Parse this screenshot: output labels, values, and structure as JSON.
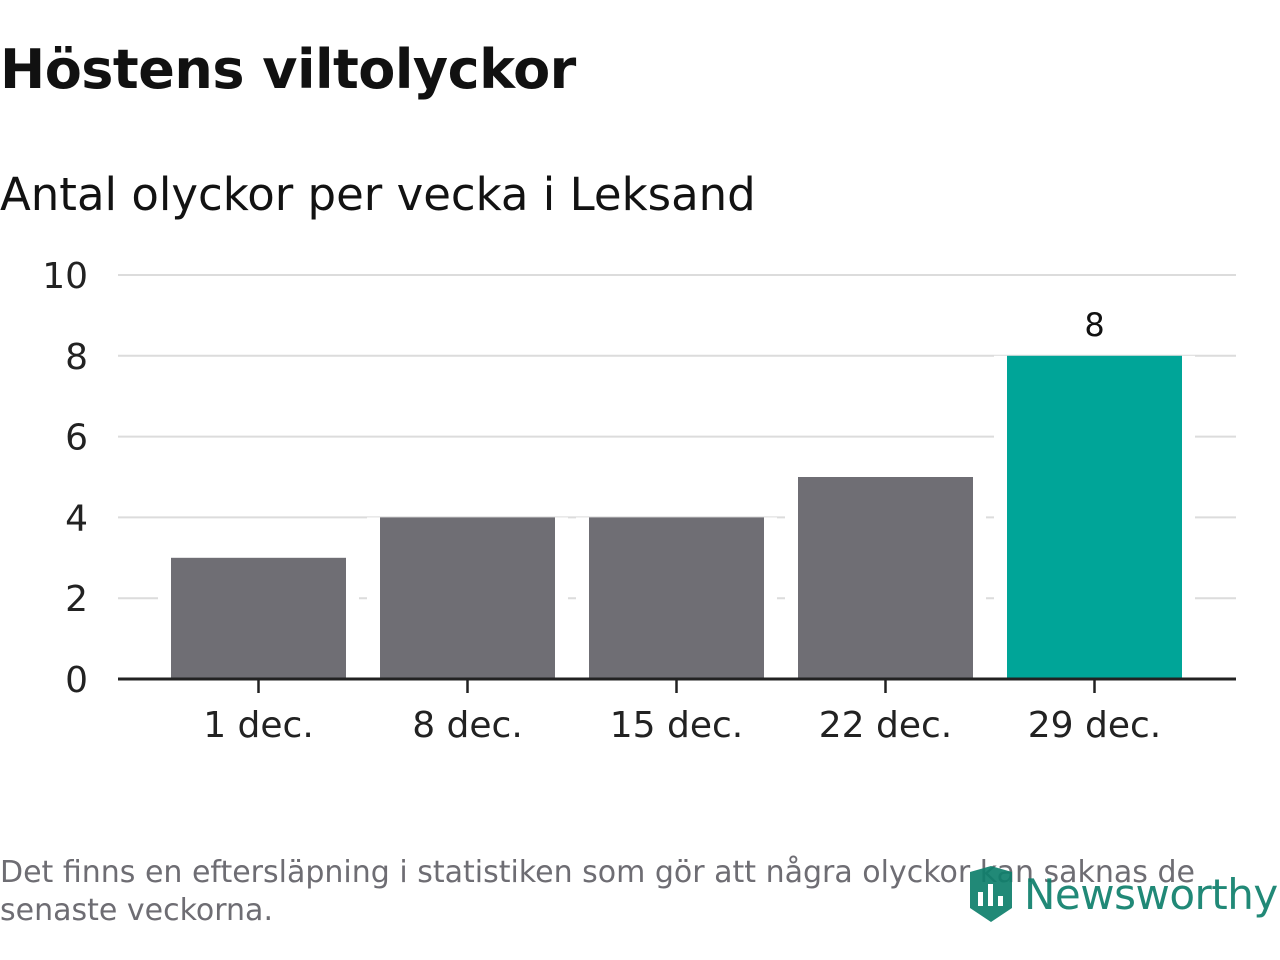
{
  "chart_data": {
    "type": "bar",
    "title": "Höstens viltolyckor",
    "subtitle": "Antal olyckor per vecka i Leksand",
    "categories": [
      "1 dec.",
      "8 dec.",
      "15 dec.",
      "22 dec.",
      "29 dec."
    ],
    "values": [
      3,
      4,
      4,
      5,
      8
    ],
    "highlight_index": 4,
    "data_labels": [
      null,
      null,
      null,
      null,
      "8"
    ],
    "ylim": [
      0,
      10
    ],
    "yticks": [
      0,
      2,
      4,
      6,
      8,
      10
    ],
    "xlabel": "",
    "ylabel": "",
    "grid": true,
    "colors": {
      "bar": "#6f6e74",
      "highlight": "#00a598",
      "grid": "#dcdcdc",
      "axis": "#222222",
      "text": "#222222"
    }
  },
  "footnote": "Det finns en eftersläpning i statistiken som gör att några olyckor kan saknas de senaste veckorna.",
  "brand": {
    "name": "Newsworthy",
    "logo_icon": "newsworthy-logo-icon",
    "color": "#0f7f6c"
  }
}
